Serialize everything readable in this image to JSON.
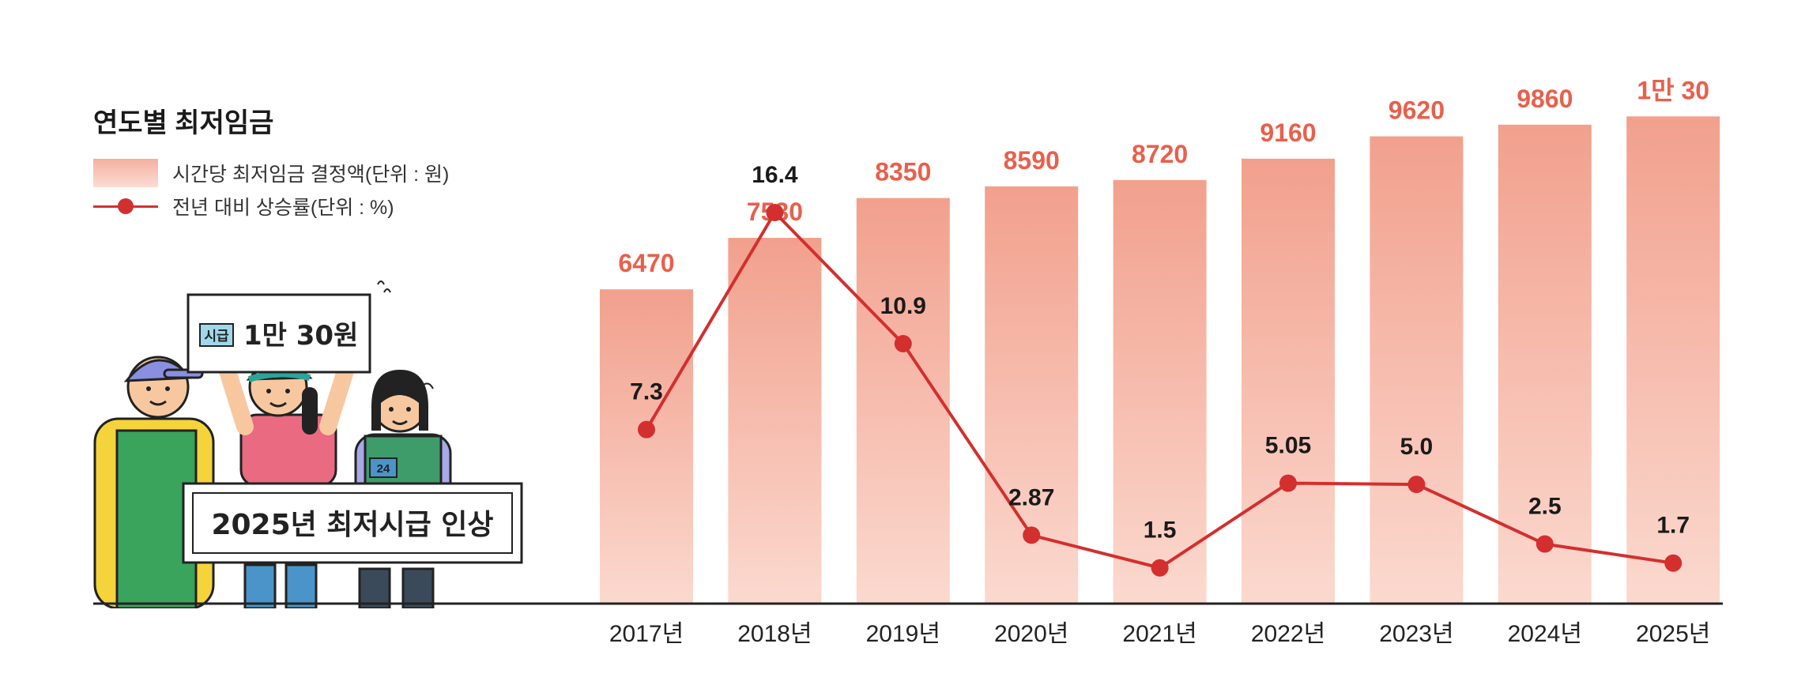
{
  "title": "연도별 최저임금",
  "legend": {
    "bar_label": "시간당 최저임금 결정액(단위 : 원)",
    "line_label": "전년 대비 상승률(단위 : %)"
  },
  "illustration": {
    "sign_badge": "시급",
    "sign_text": "1만 30원",
    "banner_text": "2025년 최저시급 인상",
    "vest_number": "24"
  },
  "colors": {
    "bar_top": "#f2a08d",
    "bar_bottom": "#fbd9cf",
    "bar_label": "#e8604c",
    "line": "#d32f2f",
    "axis": "#222222"
  },
  "chart_data": {
    "type": "bar",
    "categories": [
      "2017년",
      "2018년",
      "2019년",
      "2020년",
      "2021년",
      "2022년",
      "2023년",
      "2024년",
      "2025년"
    ],
    "series": [
      {
        "type": "bar",
        "values": [
          6470,
          7530,
          8350,
          8590,
          8720,
          9160,
          9620,
          9860,
          10030
        ],
        "labels": [
          "6470",
          "7530",
          "8350",
          "8590",
          "8720",
          "9160",
          "9620",
          "9860",
          "1만 30"
        ]
      },
      {
        "type": "line",
        "values": [
          7.3,
          16.4,
          10.9,
          2.87,
          1.5,
          5.05,
          5.0,
          2.5,
          1.7
        ],
        "labels": [
          "7.3",
          "16.4",
          "10.9",
          "2.87",
          "1.5",
          "5.05",
          "5.0",
          "2.5",
          "1.7"
        ]
      }
    ],
    "bar_ylim": [
      0,
      10800
    ],
    "line_ylim": [
      0,
      22
    ],
    "legend_position": "top-left",
    "grid": false
  }
}
